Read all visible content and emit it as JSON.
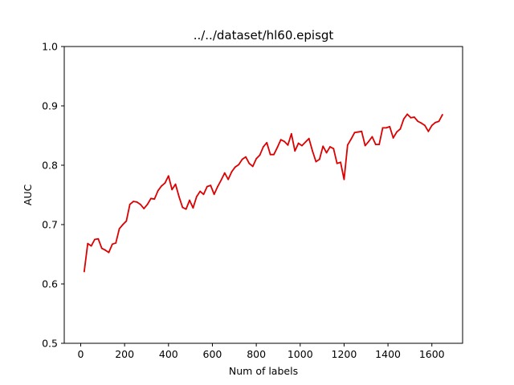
{
  "chart_data": {
    "type": "line",
    "title": "../../dataset/hl60.episgt",
    "xlabel": "Num of labels",
    "ylabel": "AUC",
    "xlim": [
      -75,
      1740
    ],
    "ylim": [
      0.5,
      1.0
    ],
    "xticks": [
      0,
      200,
      400,
      600,
      800,
      1000,
      1200,
      1400,
      1600
    ],
    "yticks": [
      0.5,
      0.6,
      0.7,
      0.8,
      0.9,
      1.0
    ],
    "grid": false,
    "series": [
      {
        "color": "#dd0000",
        "x": [
          16,
          32,
          48,
          64,
          80,
          96,
          112,
          128,
          144,
          160,
          176,
          192,
          208,
          224,
          240,
          256,
          272,
          288,
          304,
          320,
          336,
          352,
          368,
          384,
          400,
          416,
          432,
          448,
          464,
          480,
          496,
          512,
          528,
          544,
          560,
          576,
          592,
          608,
          624,
          640,
          656,
          672,
          688,
          704,
          720,
          736,
          752,
          768,
          784,
          800,
          816,
          832,
          848,
          864,
          880,
          896,
          912,
          928,
          944,
          960,
          976,
          992,
          1008,
          1024,
          1040,
          1056,
          1072,
          1088,
          1104,
          1120,
          1136,
          1152,
          1168,
          1184,
          1200,
          1216,
          1232,
          1248,
          1264,
          1280,
          1296,
          1312,
          1328,
          1344,
          1360,
          1376,
          1392,
          1408,
          1424,
          1440,
          1456,
          1472,
          1488,
          1504,
          1520,
          1536,
          1552,
          1568,
          1584,
          1600,
          1616,
          1632,
          1648
        ],
        "y": [
          0.621,
          0.668,
          0.664,
          0.675,
          0.676,
          0.66,
          0.657,
          0.653,
          0.667,
          0.669,
          0.693,
          0.7,
          0.706,
          0.734,
          0.739,
          0.738,
          0.734,
          0.727,
          0.734,
          0.744,
          0.743,
          0.757,
          0.765,
          0.77,
          0.782,
          0.759,
          0.768,
          0.747,
          0.729,
          0.726,
          0.741,
          0.728,
          0.747,
          0.756,
          0.751,
          0.764,
          0.766,
          0.751,
          0.764,
          0.775,
          0.787,
          0.776,
          0.789,
          0.797,
          0.801,
          0.81,
          0.814,
          0.803,
          0.798,
          0.811,
          0.817,
          0.831,
          0.838,
          0.818,
          0.818,
          0.83,
          0.843,
          0.84,
          0.834,
          0.853,
          0.824,
          0.837,
          0.833,
          0.839,
          0.845,
          0.824,
          0.806,
          0.81,
          0.832,
          0.821,
          0.831,
          0.828,
          0.803,
          0.805,
          0.776,
          0.834,
          0.844,
          0.855,
          0.856,
          0.857,
          0.833,
          0.84,
          0.848,
          0.835,
          0.835,
          0.863,
          0.863,
          0.865,
          0.846,
          0.856,
          0.861,
          0.878,
          0.886,
          0.88,
          0.881,
          0.874,
          0.871,
          0.867,
          0.857,
          0.867,
          0.872,
          0.874,
          0.885
        ]
      }
    ]
  }
}
